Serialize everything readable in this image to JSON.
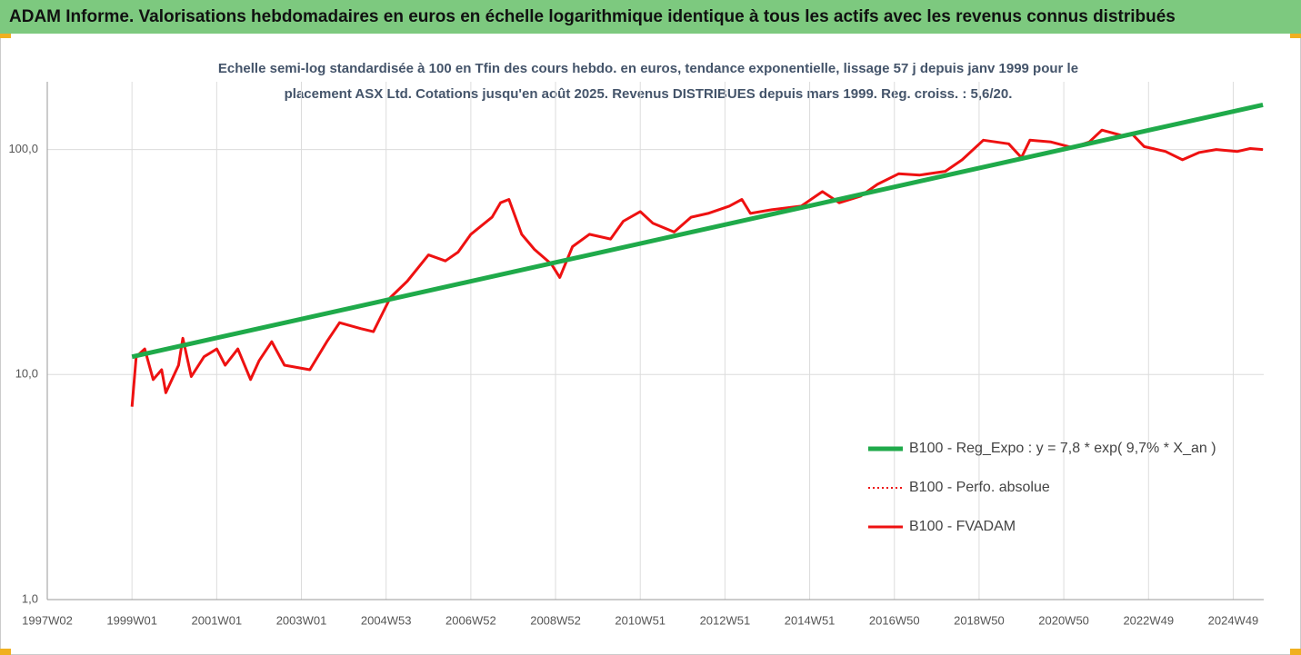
{
  "chart_data": {
    "type": "line",
    "title": "ADAM Informe. Valorisations hebdomadaires en euros en échelle logarithmique identique à tous les actifs avec les revenus connus distribués",
    "subtitle": [
      "Echelle semi-log standardisée à 100 en Tfin des cours hebdo. en euros, tendance exponentielle, lissage 57 j depuis janv 1999 pour le",
      "placement ASX Ltd.  Cotations jusqu'en août 2025. Revenus DISTRIBUES depuis mars 1999. Reg. croiss. : 5,6/20."
    ],
    "log_scale": true,
    "grid": true,
    "legend": "right",
    "xlim": [
      1997.0,
      2025.72
    ],
    "xticks": [
      {
        "value": 1997.0,
        "label": "1997W02"
      },
      {
        "value": 1999.0,
        "label": "1999W01"
      },
      {
        "value": 2001.0,
        "label": "2001W01"
      },
      {
        "value": 2003.0,
        "label": "2003W01"
      },
      {
        "value": 2005.0,
        "label": "2004W53"
      },
      {
        "value": 2007.0,
        "label": "2006W52"
      },
      {
        "value": 2009.0,
        "label": "2008W52"
      },
      {
        "value": 2011.0,
        "label": "2010W51"
      },
      {
        "value": 2013.0,
        "label": "2012W51"
      },
      {
        "value": 2015.0,
        "label": "2014W51"
      },
      {
        "value": 2017.0,
        "label": "2016W50"
      },
      {
        "value": 2019.0,
        "label": "2018W50"
      },
      {
        "value": 2021.0,
        "label": "2020W50"
      },
      {
        "value": 2023.0,
        "label": "2022W49"
      },
      {
        "value": 2025.0,
        "label": "2024W49"
      }
    ],
    "ylim": [
      1,
      200
    ],
    "yticks": [
      {
        "value": 1,
        "label": "1,0"
      },
      {
        "value": 10,
        "label": "10,0"
      },
      {
        "value": 100,
        "label": "100,0"
      }
    ],
    "series": [
      {
        "name": "B100 - Reg_Expo : y = 7,8 * exp( 9,7% *  X_an )",
        "color": "#1faa4a",
        "style": "solid",
        "width": 5,
        "x": [
          1999.0,
          2025.7
        ],
        "values": [
          12,
          158
        ]
      },
      {
        "name": "B100 - Perfo. absolue",
        "color": "#ee1111",
        "style": "dotted",
        "width": 2,
        "x": [
          1999.0,
          1999.1,
          1999.3,
          1999.5,
          1999.7,
          1999.8,
          2000.1,
          2000.2,
          2000.4,
          2000.7,
          2001.0,
          2001.2,
          2001.5,
          2001.8,
          2002.0,
          2002.3,
          2002.6,
          2003.2,
          2003.6,
          2003.9,
          2004.4,
          2004.7,
          2005.1,
          2005.5,
          2006.0,
          2006.4,
          2006.7,
          2007.0,
          2007.5,
          2007.7,
          2007.9,
          2008.2,
          2008.5,
          2008.9,
          2009.1,
          2009.4,
          2009.8,
          2010.3,
          2010.6,
          2011.0,
          2011.3,
          2011.8,
          2012.2,
          2012.6,
          2013.1,
          2013.4,
          2013.6,
          2014.1,
          2014.8,
          2015.3,
          2015.7,
          2016.2,
          2016.6,
          2017.1,
          2017.6,
          2018.2,
          2018.6,
          2019.1,
          2019.7,
          2020.0,
          2020.2,
          2020.7,
          2021.2,
          2021.6,
          2021.9,
          2022.4,
          2022.6,
          2022.9,
          2023.4,
          2023.8,
          2024.2,
          2024.6,
          2025.1,
          2025.4,
          2025.7
        ],
        "values": [
          7.2,
          12,
          13,
          9.5,
          10.5,
          8.3,
          11,
          14.5,
          9.8,
          12,
          13,
          11,
          13,
          9.5,
          11.5,
          14,
          11,
          10.5,
          14,
          17,
          16,
          15.5,
          22,
          26,
          34,
          32,
          35,
          42,
          50,
          58,
          60,
          42,
          36,
          31,
          27,
          37,
          42,
          40,
          48,
          53,
          47,
          43,
          50,
          52,
          56,
          60,
          52,
          54,
          56,
          65,
          58,
          62,
          70,
          78,
          77,
          80,
          90,
          110,
          106,
          92,
          110,
          108,
          102,
          108,
          122,
          115,
          118,
          103,
          98,
          90,
          97,
          100,
          98,
          101,
          100
        ]
      },
      {
        "name": "B100 - FVADAM",
        "color": "#ee1111",
        "style": "solid",
        "width": 3,
        "x": [
          1999.0,
          1999.1,
          1999.3,
          1999.5,
          1999.7,
          1999.8,
          2000.1,
          2000.2,
          2000.4,
          2000.7,
          2001.0,
          2001.2,
          2001.5,
          2001.8,
          2002.0,
          2002.3,
          2002.6,
          2003.2,
          2003.6,
          2003.9,
          2004.4,
          2004.7,
          2005.1,
          2005.5,
          2006.0,
          2006.4,
          2006.7,
          2007.0,
          2007.5,
          2007.7,
          2007.9,
          2008.2,
          2008.5,
          2008.9,
          2009.1,
          2009.4,
          2009.8,
          2010.3,
          2010.6,
          2011.0,
          2011.3,
          2011.8,
          2012.2,
          2012.6,
          2013.1,
          2013.4,
          2013.6,
          2014.1,
          2014.8,
          2015.3,
          2015.7,
          2016.2,
          2016.6,
          2017.1,
          2017.6,
          2018.2,
          2018.6,
          2019.1,
          2019.7,
          2020.0,
          2020.2,
          2020.7,
          2021.2,
          2021.6,
          2021.9,
          2022.4,
          2022.6,
          2022.9,
          2023.4,
          2023.8,
          2024.2,
          2024.6,
          2025.1,
          2025.4,
          2025.7
        ],
        "values": [
          7.2,
          12,
          13,
          9.5,
          10.5,
          8.3,
          11,
          14.5,
          9.8,
          12,
          13,
          11,
          13,
          9.5,
          11.5,
          14,
          11,
          10.5,
          14,
          17,
          16,
          15.5,
          22,
          26,
          34,
          32,
          35,
          42,
          50,
          58,
          60,
          42,
          36,
          31,
          27,
          37,
          42,
          40,
          48,
          53,
          47,
          43,
          50,
          52,
          56,
          60,
          52,
          54,
          56,
          65,
          58,
          62,
          70,
          78,
          77,
          80,
          90,
          110,
          106,
          92,
          110,
          108,
          102,
          108,
          122,
          115,
          118,
          103,
          98,
          90,
          97,
          100,
          98,
          101,
          100
        ]
      }
    ]
  }
}
